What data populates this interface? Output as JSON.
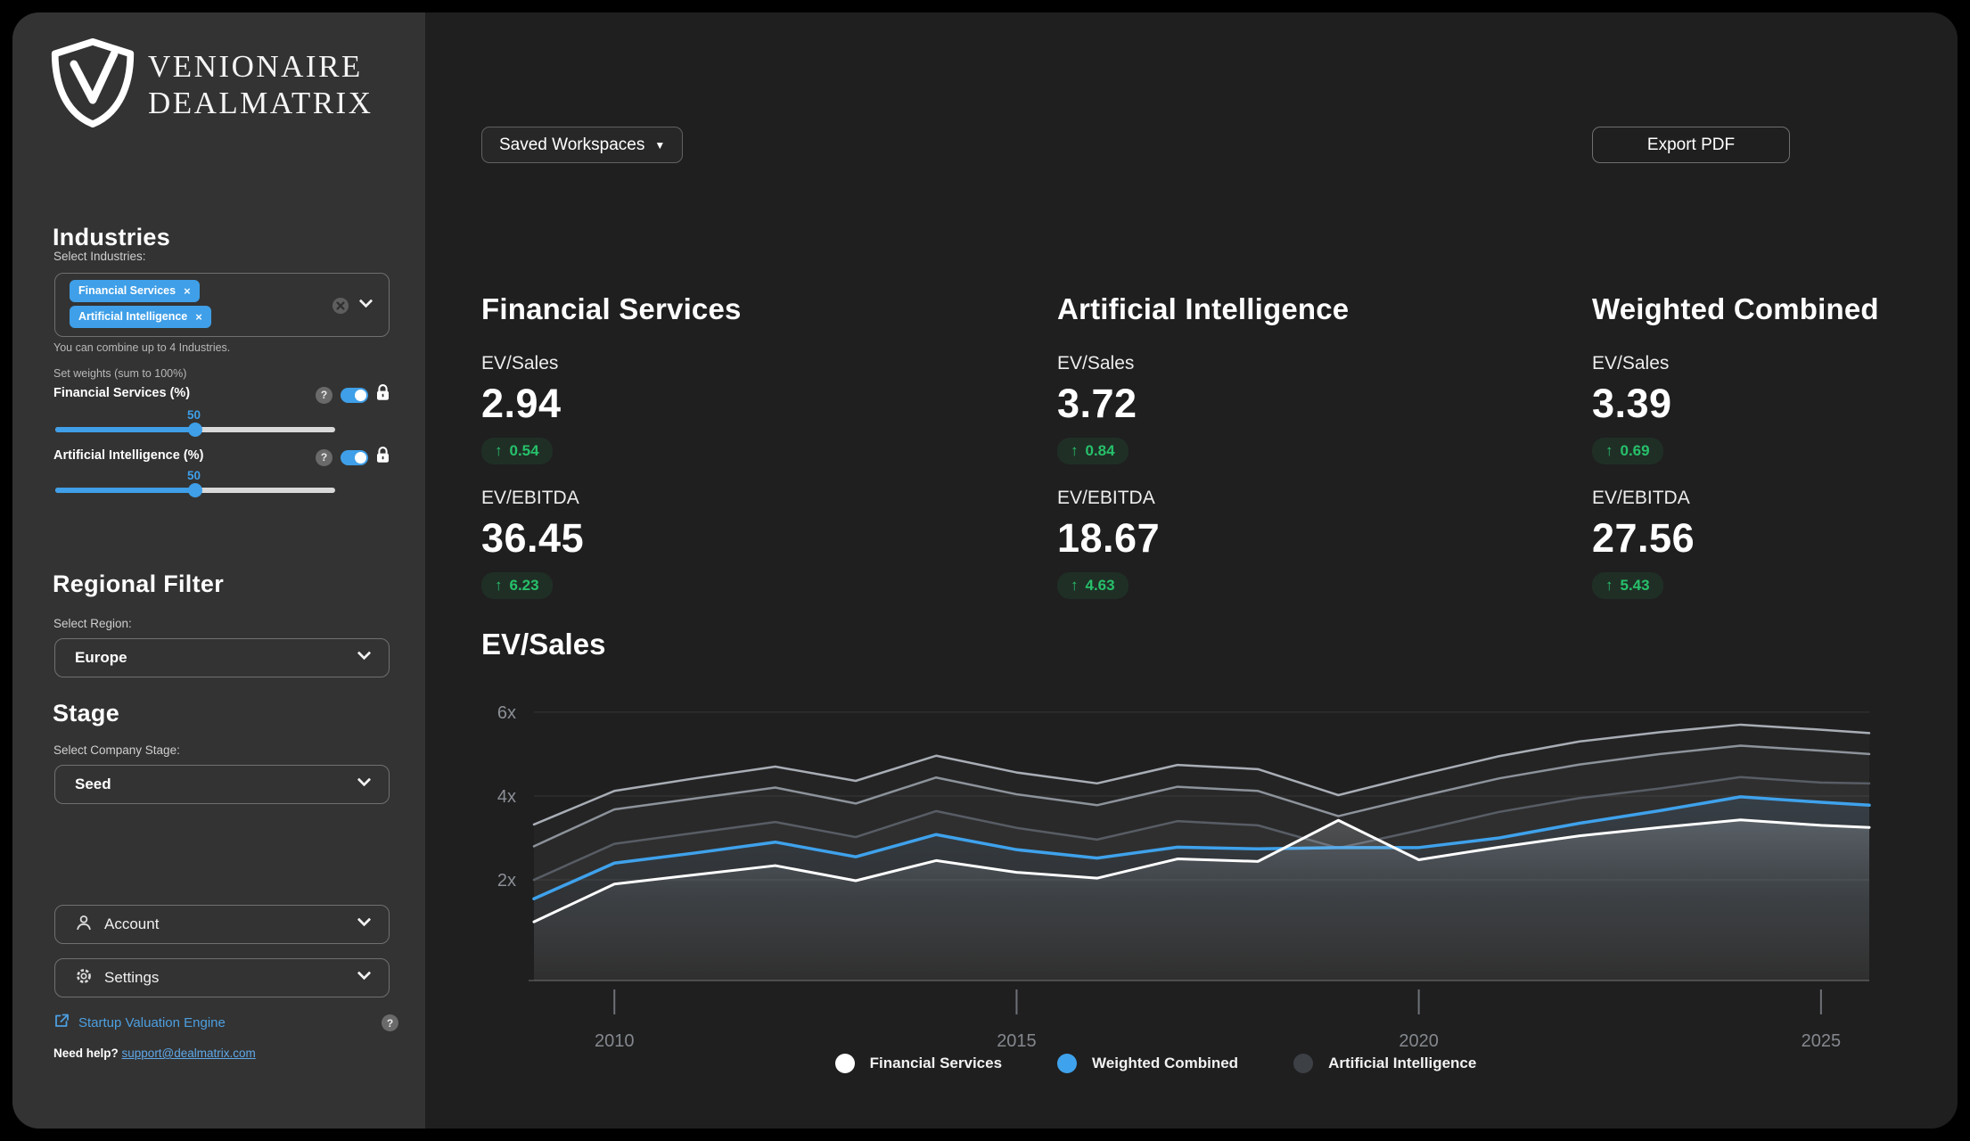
{
  "app": {
    "brand_line1": "VENIONAIRE",
    "brand_line2": "DEALMATRIX"
  },
  "icons": {
    "up_arrow": "↑",
    "chip_close": "×",
    "help": "?",
    "dropdown_triangle": "▼"
  },
  "topbar": {
    "saved_workspaces_label": "Saved Workspaces",
    "export_pdf_label": "Export PDF"
  },
  "sidebar": {
    "industries": {
      "heading": "Industries",
      "select_label": "Select Industries:",
      "chips": [
        {
          "label": "Financial Services"
        },
        {
          "label": "Artificial Intelligence"
        }
      ],
      "helper": "You can combine up to 4 Industries.",
      "weights_label": "Set weights (sum to 100%)",
      "sliders": [
        {
          "label": "Financial Services (%)",
          "value": "50"
        },
        {
          "label": "Artificial Intelligence (%)",
          "value": "50"
        }
      ]
    },
    "regional": {
      "heading": "Regional Filter",
      "select_label": "Select Region:",
      "selected": "Europe"
    },
    "stage": {
      "heading": "Stage",
      "select_label": "Select Company Stage:",
      "selected": "Seed"
    },
    "account_label": "Account",
    "settings_label": "Settings",
    "sve_link_label": "Startup Valuation Engine",
    "help_prefix": "Need help?",
    "help_email": "support@dealmatrix.com"
  },
  "metrics": {
    "cards": [
      {
        "title": "Financial Services",
        "rows": [
          {
            "label": "EV/Sales",
            "value": "2.94",
            "delta": "0.54"
          },
          {
            "label": "EV/EBITDA",
            "value": "36.45",
            "delta": "6.23"
          }
        ]
      },
      {
        "title": "Artificial Intelligence",
        "rows": [
          {
            "label": "EV/Sales",
            "value": "3.72",
            "delta": "0.84"
          },
          {
            "label": "EV/EBITDA",
            "value": "18.67",
            "delta": "4.63"
          }
        ]
      },
      {
        "title": "Weighted Combined",
        "rows": [
          {
            "label": "EV/Sales",
            "value": "3.39",
            "delta": "0.69"
          },
          {
            "label": "EV/EBITDA",
            "value": "27.56",
            "delta": "5.43"
          }
        ]
      }
    ]
  },
  "chart_data": {
    "type": "line",
    "title": "EV/Sales",
    "x": [
      2009,
      2010,
      2011,
      2012,
      2013,
      2014,
      2015,
      2016,
      2017,
      2018,
      2019,
      2020,
      2021,
      2022,
      2023,
      2024,
      2025,
      2025.6
    ],
    "xlim": [
      2009,
      2025.6
    ],
    "ylim": [
      -0.4,
      6.4
    ],
    "x_ticks": [
      2010,
      2015,
      2020,
      2025
    ],
    "y_ticks": [
      {
        "value": 2,
        "label": "2x"
      },
      {
        "value": 4,
        "label": "4x"
      },
      {
        "value": 6,
        "label": "6x"
      }
    ],
    "grid": true,
    "legend_position": "bottom",
    "series": [
      {
        "name": "Artificial Intelligence (upper band)",
        "color": "#a9aeb6",
        "width": 2.5,
        "fill": "rgba(255,255,255,0.025)",
        "values": [
          3.32,
          4.12,
          4.42,
          4.7,
          4.36,
          4.96,
          4.56,
          4.3,
          4.74,
          4.64,
          4.02,
          4.5,
          4.95,
          5.3,
          5.52,
          5.7,
          5.58,
          5.5
        ]
      },
      {
        "name": "Artificial Intelligence",
        "color": "#8d939b",
        "width": 2.5,
        "fill": "rgba(255,255,255,0.025)",
        "values": [
          2.8,
          3.68,
          3.94,
          4.2,
          3.82,
          4.44,
          4.04,
          3.78,
          4.22,
          4.12,
          3.52,
          3.98,
          4.42,
          4.75,
          5.0,
          5.2,
          5.08,
          5.0
        ]
      },
      {
        "name": "Artificial Intelligence (lower band)",
        "color": "#585d65",
        "width": 2.5,
        "fill": "rgba(255,255,255,0.03)",
        "values": [
          2.0,
          2.86,
          3.12,
          3.38,
          3.02,
          3.64,
          3.24,
          2.96,
          3.4,
          3.3,
          2.76,
          3.18,
          3.62,
          3.95,
          4.18,
          4.45,
          4.32,
          4.3
        ]
      },
      {
        "name": "Weighted Combined",
        "color": "#3fa2ec",
        "width": 3.5,
        "fill": "url(#gradBlue)",
        "values": [
          1.55,
          2.4,
          2.64,
          2.9,
          2.55,
          3.08,
          2.72,
          2.52,
          2.78,
          2.74,
          2.77,
          2.77,
          3.0,
          3.35,
          3.65,
          3.98,
          3.85,
          3.78
        ]
      },
      {
        "name": "Financial Services",
        "color": "#ffffff",
        "width": 3,
        "fill": "url(#gradWhite)",
        "values": [
          1.0,
          1.9,
          2.12,
          2.34,
          1.98,
          2.46,
          2.18,
          2.04,
          2.5,
          2.44,
          3.42,
          2.48,
          2.78,
          3.05,
          3.25,
          3.43,
          3.3,
          3.25
        ]
      }
    ],
    "legend": [
      {
        "label": "Financial Services",
        "color": "#ffffff"
      },
      {
        "label": "Weighted Combined",
        "color": "#3fa2ec"
      },
      {
        "label": "Artificial Intelligence",
        "color": "#3d4045"
      }
    ]
  },
  "colors": {
    "accent_blue": "#3f9fe8",
    "positive_green": "#27c06a",
    "sidebar_bg": "#333333",
    "main_bg": "#1f1f1f",
    "link_blue": "#5fa8e8"
  }
}
